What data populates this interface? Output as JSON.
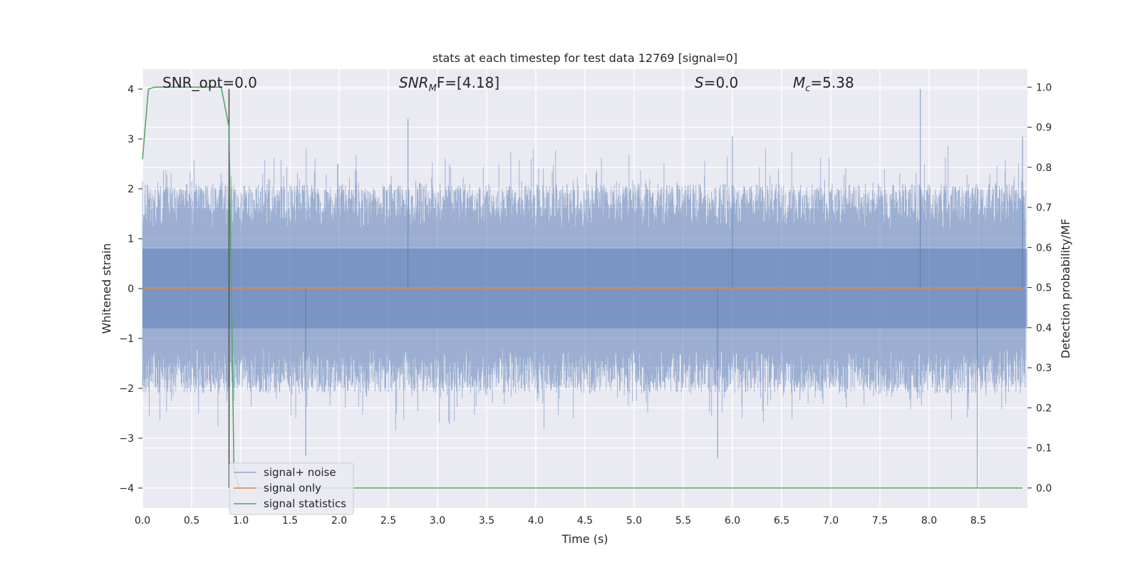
{
  "chart_data": {
    "type": "line",
    "title": "stats at each timestep for test data 12769 [signal=0]",
    "xlabel": "Time (s)",
    "ylabel": "Whitened strain",
    "ylabel_right": "Detection probability/MF",
    "xlim": [
      0.0,
      9.0
    ],
    "ylim": [
      -4.4,
      4.4
    ],
    "ylim_right": [
      -0.05,
      1.045
    ],
    "x_ticks": [
      "0.0",
      "0.5",
      "1.0",
      "1.5",
      "2.0",
      "2.5",
      "3.0",
      "3.5",
      "4.0",
      "4.5",
      "5.0",
      "5.5",
      "6.0",
      "6.5",
      "7.0",
      "7.5",
      "8.0",
      "8.5"
    ],
    "y_ticks": [
      "4",
      "3",
      "2",
      "1",
      "0",
      "−1",
      "−2",
      "−3",
      "−4"
    ],
    "y_ticks_right": [
      "1.0",
      "0.9",
      "0.8",
      "0.7",
      "0.6",
      "0.5",
      "0.4",
      "0.3",
      "0.2",
      "0.1",
      "0.0"
    ],
    "grid": true,
    "legend_position": "lower-left",
    "annotations": {
      "snr_opt": "SNR_opt=0.0",
      "snr_mf_main": "SNR",
      "snr_mf_sub": "M",
      "snr_mf_tail": "F=[4.18]",
      "s_main": "S",
      "s_tail": "=0.0",
      "mc_main": "M",
      "mc_sub": "c",
      "mc_tail": "=5.38"
    },
    "series": [
      {
        "name": "signal+ noise",
        "color": "#4c72b0",
        "kind": "noise",
        "envelope_typical": [
          -2.0,
          2.0
        ],
        "notable_spikes": [
          {
            "x": 7.91,
            "y": 4.0
          },
          {
            "x": 8.49,
            "y": -4.0
          },
          {
            "x": 2.7,
            "y": 3.4
          },
          {
            "x": 5.85,
            "y": -3.4
          },
          {
            "x": 1.66,
            "y": -3.35
          },
          {
            "x": 6.0,
            "y": 3.05
          },
          {
            "x": 8.95,
            "y": 3.05
          }
        ]
      },
      {
        "name": "signal only",
        "color": "#dd8452",
        "kind": "constant",
        "value": 0.0
      },
      {
        "name": "signal statistics",
        "color": "#55a868",
        "axis": "right",
        "x": [
          0.0,
          0.06,
          0.12,
          0.5,
          0.8,
          0.88,
          0.93,
          0.98,
          1.1,
          2.0,
          4.0,
          6.0,
          8.0,
          8.95
        ],
        "values": [
          0.82,
          0.995,
          1.0,
          1.0,
          1.0,
          0.9,
          0.05,
          0.0,
          0.0,
          0.0,
          0.0,
          0.0,
          0.0,
          0.0
        ]
      }
    ],
    "vertical_marker": {
      "x": 0.88,
      "y_range": [
        -4.0,
        4.0
      ],
      "color": "#555555"
    }
  }
}
